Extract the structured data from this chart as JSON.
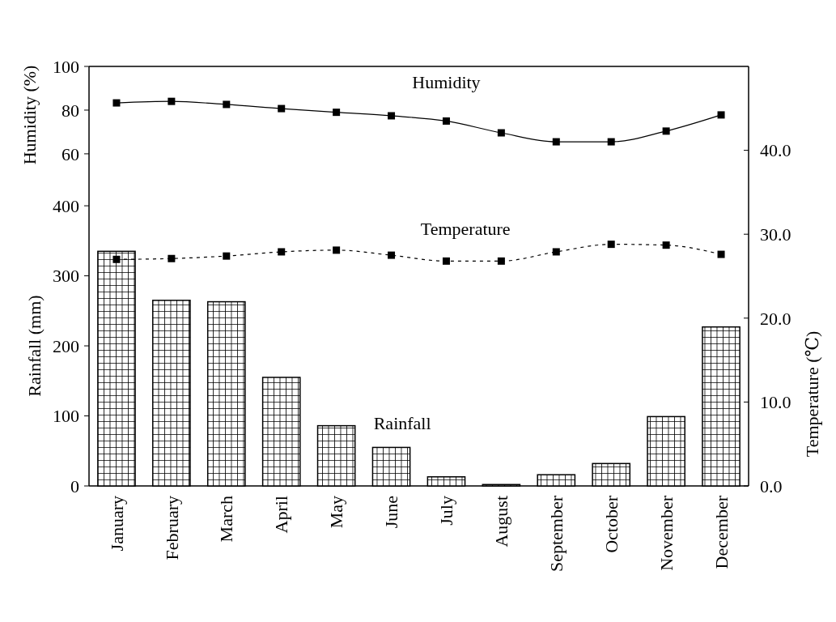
{
  "chart_data": {
    "type": "bar",
    "categories": [
      "January",
      "February",
      "March",
      "April",
      "May",
      "June",
      "July",
      "August",
      "September",
      "October",
      "November",
      "December"
    ],
    "ylabel": "Rainfall (mm)",
    "y2label": "Temperature (℃)",
    "y3label": "Humidity (%)",
    "ylim": [
      0,
      599
    ],
    "yticks": [
      0,
      100,
      200,
      300,
      400
    ],
    "y2lim": [
      0,
      50
    ],
    "y2ticks": [
      {
        "value": 0,
        "label": "0.0"
      },
      {
        "value": 10,
        "label": "10.0"
      },
      {
        "value": 20,
        "label": "20.0"
      },
      {
        "value": 30,
        "label": "30.0"
      },
      {
        "value": 40,
        "label": "40.0"
      }
    ],
    "y3lim": [
      -92,
      100
    ],
    "y3ticks": [
      60,
      80,
      100
    ],
    "grid": false,
    "series": [
      {
        "name": "Rainfall",
        "color": "#000000",
        "values": [
          335,
          265,
          263,
          155,
          86,
          55,
          13,
          2,
          16,
          32,
          99,
          227
        ]
      },
      {
        "name": "Humidity",
        "type": "line",
        "axis": "y3",
        "color": "#000000",
        "marker": "square",
        "line_style": "solid",
        "values": [
          83.3,
          84,
          82.6,
          80.7,
          79,
          77.4,
          75,
          69.6,
          65.5,
          65.5,
          70.4,
          77.8
        ]
      },
      {
        "name": "Temperature",
        "type": "line",
        "axis": "y2",
        "color": "#000000",
        "marker": "square",
        "line_style": "dashed",
        "values": [
          27.0,
          27.1,
          27.4,
          27.9,
          28.1,
          27.5,
          26.8,
          26.8,
          27.9,
          28.8,
          28.7,
          27.6
        ]
      }
    ]
  }
}
